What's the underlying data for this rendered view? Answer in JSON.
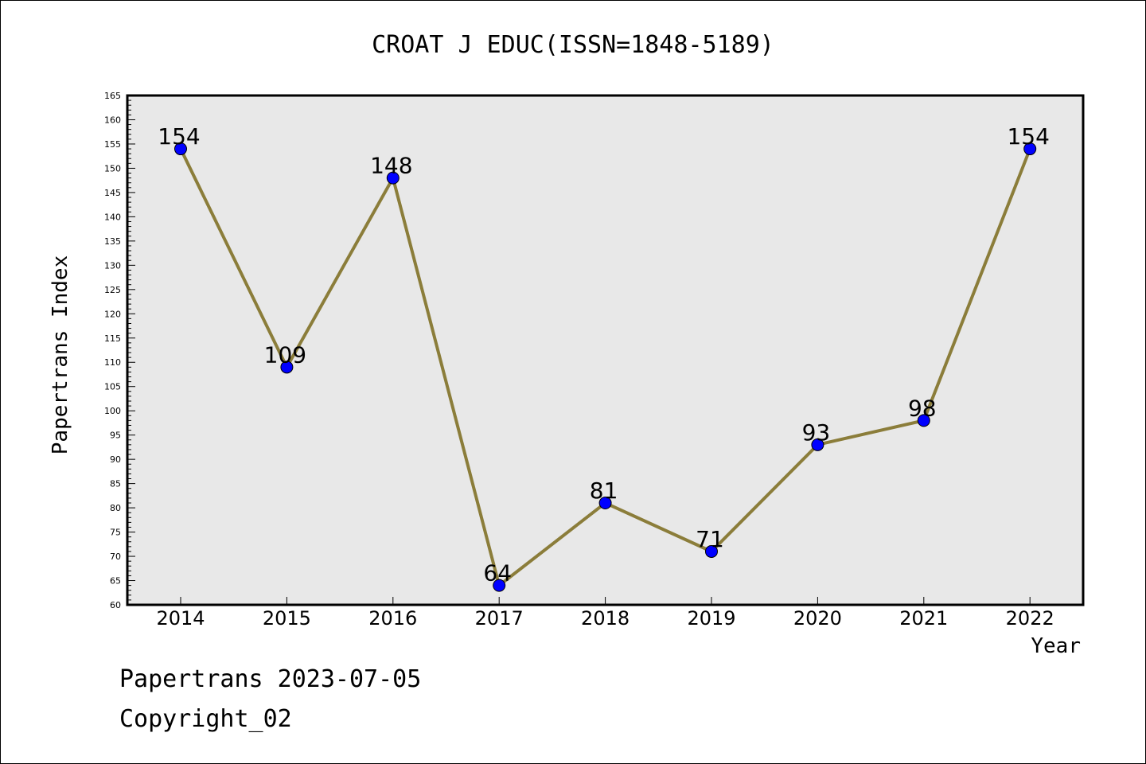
{
  "chart_data": {
    "type": "line",
    "title": "CROAT J EDUC(ISSN=1848-5189)",
    "xlabel": "Year",
    "ylabel": "Papertrans Index",
    "categories": [
      "2014",
      "2015",
      "2016",
      "2017",
      "2018",
      "2019",
      "2020",
      "2021",
      "2022"
    ],
    "values": [
      154,
      109,
      148,
      64,
      81,
      71,
      93,
      98,
      154
    ],
    "data_labels": [
      "154",
      "109",
      "148",
      "64",
      "81",
      "71",
      "93",
      "98",
      "154"
    ],
    "ylim": [
      60,
      165
    ],
    "y_tick_step": 5,
    "y_ticks": [
      "60",
      "65",
      "70",
      "75",
      "80",
      "85",
      "90",
      "95",
      "100",
      "105",
      "110",
      "115",
      "120",
      "125",
      "130",
      "135",
      "140",
      "145",
      "150",
      "155",
      "160",
      "165"
    ],
    "grid": false,
    "colors": {
      "line": "#8b7d3a",
      "marker": "#0000ff",
      "plot_bg": "#e8e8e8"
    }
  },
  "footer": {
    "line1": "Papertrans 2023-07-05",
    "line2": "Copyright_02"
  }
}
